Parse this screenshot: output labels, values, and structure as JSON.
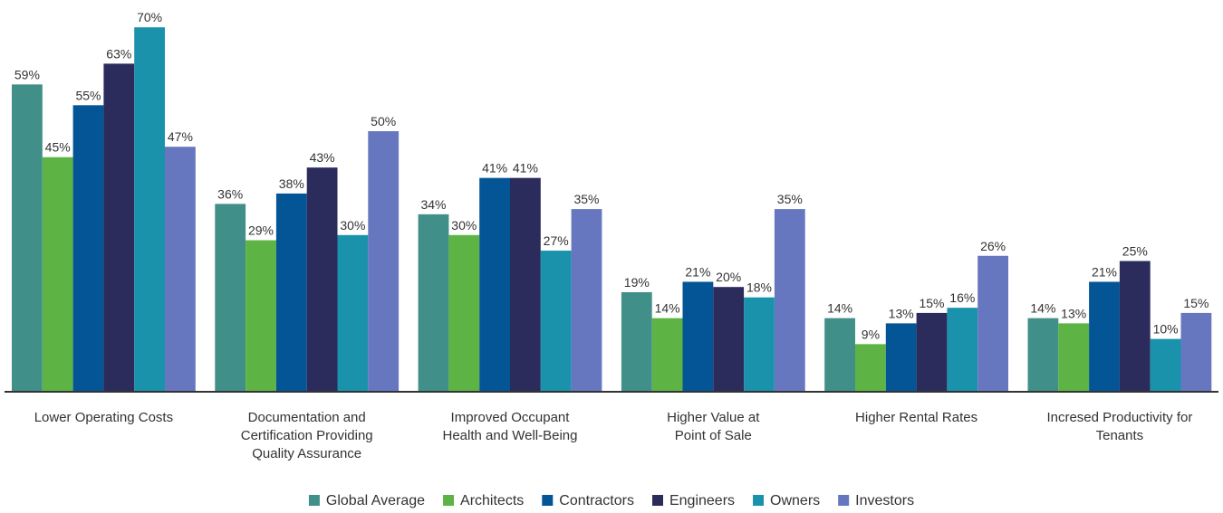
{
  "chart_data": {
    "type": "bar",
    "title": "",
    "xlabel": "",
    "ylabel": "",
    "ylim": [
      0,
      70
    ],
    "grid": false,
    "legend_position": "bottom",
    "categories": [
      "Lower Operating Costs",
      "Documentation and Certification Providing Quality Assurance",
      "Improved Occupant Health and Well-Being",
      "Higher Value at Point of Sale",
      "Higher Rental Rates",
      "Incresed Productivity for Tenants"
    ],
    "category_lines": [
      [
        "Lower Operating Costs"
      ],
      [
        "Documentation and",
        "Certification Providing",
        "Quality Assurance"
      ],
      [
        "Improved Occupant",
        "Health and Well-Being"
      ],
      [
        "Higher Value at",
        "Point of Sale"
      ],
      [
        "Higher Rental Rates"
      ],
      [
        "Incresed Productivity for",
        "Tenants"
      ]
    ],
    "value_suffix": "%",
    "series": [
      {
        "name": "Global Average",
        "color": "#418f89",
        "values": [
          59,
          36,
          34,
          19,
          14,
          14
        ]
      },
      {
        "name": "Architects",
        "color": "#5db445",
        "values": [
          45,
          29,
          30,
          14,
          9,
          13
        ]
      },
      {
        "name": "Contractors",
        "color": "#035595",
        "values": [
          55,
          38,
          41,
          21,
          13,
          21
        ]
      },
      {
        "name": "Engineers",
        "color": "#2b2b5c",
        "values": [
          63,
          43,
          41,
          20,
          15,
          25
        ]
      },
      {
        "name": "Owners",
        "color": "#1a92ab",
        "values": [
          70,
          30,
          27,
          18,
          16,
          10
        ]
      },
      {
        "name": "Investors",
        "color": "#6677c0",
        "values": [
          47,
          50,
          35,
          35,
          26,
          15
        ]
      }
    ]
  }
}
